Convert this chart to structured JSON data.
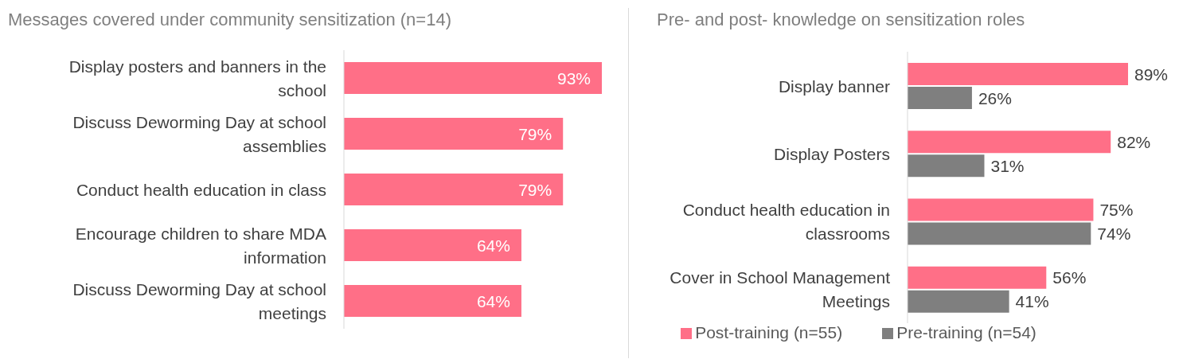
{
  "chart_data": [
    {
      "type": "bar",
      "orientation": "horizontal",
      "title": "Messages covered under community sensitization (n=14)",
      "categories": [
        "Display posters and banners in the school",
        "Discuss Deworming Day at school assemblies",
        "Conduct health education in class",
        "Encourage children to share MDA information",
        "Discuss Deworming Day at school meetings"
      ],
      "tick_labels": "y",
      "grid": false,
      "legend": false,
      "series": [
        {
          "color": "#ff6f87",
          "values": [
            93,
            79,
            79,
            64,
            64
          ],
          "value_labels": [
            "93%",
            "79%",
            "79%",
            "64%",
            "64%"
          ]
        }
      ]
    },
    {
      "type": "bar",
      "orientation": "horizontal",
      "title": "Pre- and post- knowledge on sensitization roles",
      "categories": [
        "Display banner",
        "Display Posters",
        "Conduct health education in classrooms",
        "Cover in School Management Meetings"
      ],
      "tick_labels": "y",
      "grid": false,
      "legend": "bottom",
      "series": [
        {
          "name": "Post-training (n=55)",
          "color": "#ff6f87",
          "values": [
            89,
            82,
            75,
            56
          ],
          "value_labels": [
            "89%",
            "82%",
            "75%",
            "56%"
          ]
        },
        {
          "name": "Pre-training (n=54)",
          "color": "#7f7f7f",
          "values": [
            26,
            31,
            74,
            41
          ],
          "value_labels": [
            "26%",
            "31%",
            "74%",
            "41%"
          ]
        }
      ]
    }
  ]
}
